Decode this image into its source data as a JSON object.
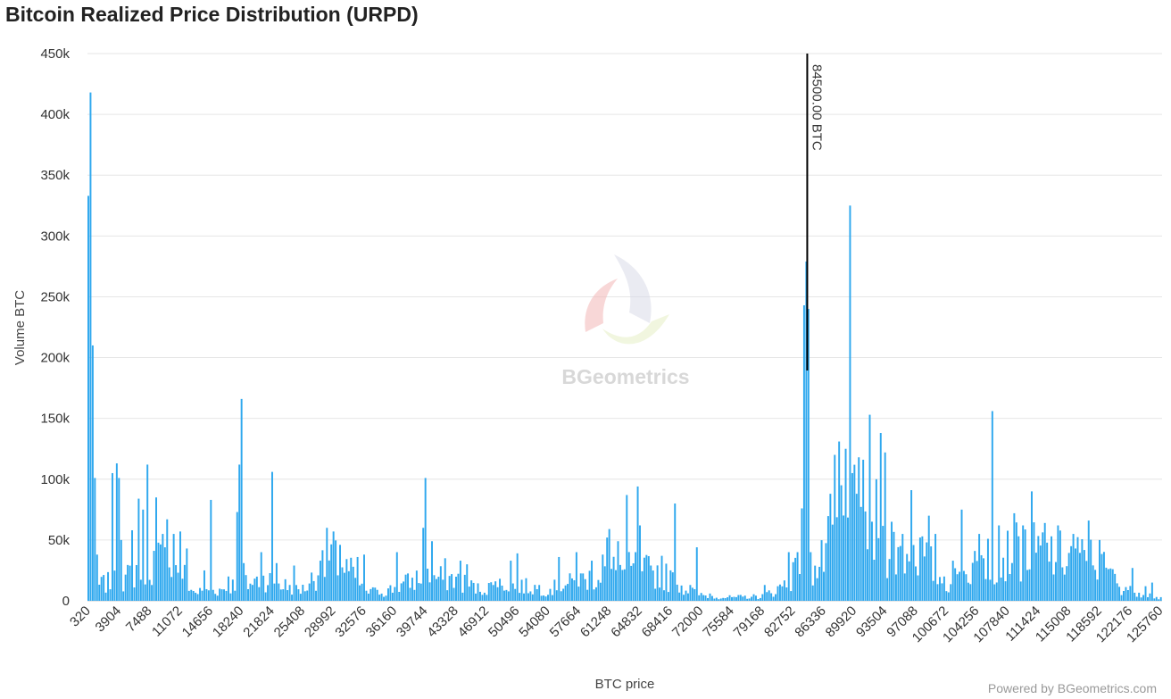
{
  "page": {
    "title": "Bitcoin Realized Price Distribution (URPD)",
    "credit": "Powered by BGeometrics.com",
    "watermark": "BGeometrics"
  },
  "colors": {
    "bar": "#2fa8ee",
    "grid": "#e6e6e6",
    "marker": "#000000",
    "logo": [
      "#d9dbe8",
      "#f3b7b7",
      "#e6f0c6"
    ]
  },
  "chart_data": {
    "type": "bar",
    "xlabel": "BTC price",
    "ylabel": "Volume BTC",
    "ylim": [
      0,
      450000
    ],
    "y_ticks": [
      {
        "value": 0,
        "label": "0"
      },
      {
        "value": 50000,
        "label": "50k"
      },
      {
        "value": 100000,
        "label": "100k"
      },
      {
        "value": 150000,
        "label": "150k"
      },
      {
        "value": 200000,
        "label": "200k"
      },
      {
        "value": 250000,
        "label": "250k"
      },
      {
        "value": 300000,
        "label": "300k"
      },
      {
        "value": 350000,
        "label": "350k"
      },
      {
        "value": 400000,
        "label": "400k"
      },
      {
        "value": 450000,
        "label": "450k"
      }
    ],
    "x_range": [
      320,
      126000
    ],
    "x_ticks": [
      "320",
      "3904",
      "7488",
      "11072",
      "14656",
      "18240",
      "21824",
      "25408",
      "28992",
      "32576",
      "36160",
      "39744",
      "43328",
      "46912",
      "50496",
      "54080",
      "57664",
      "61248",
      "64832",
      "68416",
      "72000",
      "75584",
      "79168",
      "82752",
      "86336",
      "89920",
      "93504",
      "97088",
      "100672",
      "104256",
      "107840",
      "111424",
      "115008",
      "118592",
      "122176",
      "125760"
    ],
    "bin_width": 256,
    "annotations": [
      {
        "x": 84500,
        "text": "84500.00 BTC"
      }
    ],
    "grid": true,
    "legend": "none",
    "peaks": [
      {
        "x": 320,
        "y": 333000
      },
      {
        "x": 576,
        "y": 418000
      },
      {
        "x": 832,
        "y": 210000
      },
      {
        "x": 1100,
        "y": 101000
      },
      {
        "x": 1350,
        "y": 38000
      },
      {
        "x": 3100,
        "y": 105000
      },
      {
        "x": 3600,
        "y": 113000
      },
      {
        "x": 3850,
        "y": 101000
      },
      {
        "x": 4100,
        "y": 50000
      },
      {
        "x": 5400,
        "y": 58000
      },
      {
        "x": 6300,
        "y": 84000
      },
      {
        "x": 6800,
        "y": 75000
      },
      {
        "x": 7300,
        "y": 112000
      },
      {
        "x": 8300,
        "y": 85000
      },
      {
        "x": 9000,
        "y": 55000
      },
      {
        "x": 9600,
        "y": 67000
      },
      {
        "x": 10200,
        "y": 55000
      },
      {
        "x": 11000,
        "y": 57000
      },
      {
        "x": 11900,
        "y": 43000
      },
      {
        "x": 13800,
        "y": 25000
      },
      {
        "x": 14600,
        "y": 83000
      },
      {
        "x": 16700,
        "y": 20000
      },
      {
        "x": 17600,
        "y": 73000
      },
      {
        "x": 17900,
        "y": 112000
      },
      {
        "x": 18200,
        "y": 166000
      },
      {
        "x": 18500,
        "y": 31000
      },
      {
        "x": 20500,
        "y": 40000
      },
      {
        "x": 21800,
        "y": 106000
      },
      {
        "x": 22400,
        "y": 31000
      },
      {
        "x": 24400,
        "y": 29000
      },
      {
        "x": 27500,
        "y": 33000
      },
      {
        "x": 28300,
        "y": 60000
      },
      {
        "x": 29000,
        "y": 57000
      },
      {
        "x": 29700,
        "y": 46000
      },
      {
        "x": 31700,
        "y": 36000
      },
      {
        "x": 32600,
        "y": 38000
      },
      {
        "x": 34000,
        "y": 9000
      },
      {
        "x": 36300,
        "y": 40000
      },
      {
        "x": 38200,
        "y": 19000
      },
      {
        "x": 39400,
        "y": 60000
      },
      {
        "x": 39700,
        "y": 101000
      },
      {
        "x": 40500,
        "y": 49000
      },
      {
        "x": 42000,
        "y": 35000
      },
      {
        "x": 43800,
        "y": 33000
      },
      {
        "x": 44600,
        "y": 30000
      },
      {
        "x": 48000,
        "y": 16000
      },
      {
        "x": 49600,
        "y": 33000
      },
      {
        "x": 50500,
        "y": 39000
      },
      {
        "x": 53000,
        "y": 13000
      },
      {
        "x": 55300,
        "y": 36000
      },
      {
        "x": 57300,
        "y": 40000
      },
      {
        "x": 59300,
        "y": 33000
      },
      {
        "x": 60600,
        "y": 38000
      },
      {
        "x": 61000,
        "y": 52000
      },
      {
        "x": 61250,
        "y": 59000
      },
      {
        "x": 62300,
        "y": 49000
      },
      {
        "x": 63200,
        "y": 87000
      },
      {
        "x": 64300,
        "y": 40000
      },
      {
        "x": 64600,
        "y": 94000
      },
      {
        "x": 64900,
        "y": 62000
      },
      {
        "x": 66100,
        "y": 29000
      },
      {
        "x": 67300,
        "y": 37000
      },
      {
        "x": 68800,
        "y": 80000
      },
      {
        "x": 70600,
        "y": 13000
      },
      {
        "x": 71400,
        "y": 44000
      },
      {
        "x": 73000,
        "y": 6000
      },
      {
        "x": 76000,
        "y": 3000
      },
      {
        "x": 79300,
        "y": 13000
      },
      {
        "x": 81000,
        "y": 12000
      },
      {
        "x": 82300,
        "y": 40000
      },
      {
        "x": 83200,
        "y": 40000
      },
      {
        "x": 83800,
        "y": 76000
      },
      {
        "x": 84100,
        "y": 243000
      },
      {
        "x": 84400,
        "y": 279000
      },
      {
        "x": 84650,
        "y": 240000
      },
      {
        "x": 84900,
        "y": 40000
      },
      {
        "x": 87000,
        "y": 88000
      },
      {
        "x": 87500,
        "y": 120000
      },
      {
        "x": 88000,
        "y": 131000
      },
      {
        "x": 88500,
        "y": 95000
      },
      {
        "x": 88900,
        "y": 125000
      },
      {
        "x": 89400,
        "y": 325000
      },
      {
        "x": 89700,
        "y": 105000
      },
      {
        "x": 90100,
        "y": 88000
      },
      {
        "x": 90500,
        "y": 118000
      },
      {
        "x": 90900,
        "y": 116000
      },
      {
        "x": 91800,
        "y": 153000
      },
      {
        "x": 92400,
        "y": 100000
      },
      {
        "x": 93000,
        "y": 138000
      },
      {
        "x": 93500,
        "y": 122000
      },
      {
        "x": 94200,
        "y": 65000
      },
      {
        "x": 95600,
        "y": 55000
      },
      {
        "x": 96500,
        "y": 91000
      },
      {
        "x": 97500,
        "y": 52000
      },
      {
        "x": 98600,
        "y": 70000
      },
      {
        "x": 99400,
        "y": 55000
      },
      {
        "x": 100300,
        "y": 20000
      },
      {
        "x": 101400,
        "y": 33000
      },
      {
        "x": 102500,
        "y": 75000
      },
      {
        "x": 104000,
        "y": 41000
      },
      {
        "x": 104600,
        "y": 55000
      },
      {
        "x": 105600,
        "y": 51000
      },
      {
        "x": 106100,
        "y": 156000
      },
      {
        "x": 106700,
        "y": 62000
      },
      {
        "x": 108500,
        "y": 72000
      },
      {
        "x": 109600,
        "y": 62000
      },
      {
        "x": 110700,
        "y": 90000
      },
      {
        "x": 112300,
        "y": 64000
      },
      {
        "x": 113600,
        "y": 62000
      },
      {
        "x": 115500,
        "y": 55000
      },
      {
        "x": 117300,
        "y": 66000
      },
      {
        "x": 118600,
        "y": 50000
      },
      {
        "x": 120000,
        "y": 26000
      },
      {
        "x": 122500,
        "y": 27000
      },
      {
        "x": 124000,
        "y": 12000
      },
      {
        "x": 124700,
        "y": 15000
      },
      {
        "x": 125700,
        "y": 3000
      }
    ],
    "base_levels": [
      {
        "x": 320,
        "y": 10000
      },
      {
        "x": 2000,
        "y": 15000
      },
      {
        "x": 4500,
        "y": 18000
      },
      {
        "x": 6000,
        "y": 28000
      },
      {
        "x": 8000,
        "y": 35000
      },
      {
        "x": 10500,
        "y": 38000
      },
      {
        "x": 12500,
        "y": 8000
      },
      {
        "x": 14000,
        "y": 8000
      },
      {
        "x": 16000,
        "y": 10000
      },
      {
        "x": 17000,
        "y": 14000
      },
      {
        "x": 19000,
        "y": 15000
      },
      {
        "x": 21000,
        "y": 20000
      },
      {
        "x": 23000,
        "y": 14000
      },
      {
        "x": 25500,
        "y": 10000
      },
      {
        "x": 27000,
        "y": 24000
      },
      {
        "x": 29000,
        "y": 35000
      },
      {
        "x": 31000,
        "y": 25000
      },
      {
        "x": 33000,
        "y": 8000
      },
      {
        "x": 35000,
        "y": 8000
      },
      {
        "x": 37000,
        "y": 14000
      },
      {
        "x": 39000,
        "y": 20000
      },
      {
        "x": 41000,
        "y": 20000
      },
      {
        "x": 43000,
        "y": 20000
      },
      {
        "x": 46000,
        "y": 10000
      },
      {
        "x": 49000,
        "y": 15000
      },
      {
        "x": 52000,
        "y": 12000
      },
      {
        "x": 54000,
        "y": 10000
      },
      {
        "x": 56000,
        "y": 14000
      },
      {
        "x": 58000,
        "y": 18000
      },
      {
        "x": 61000,
        "y": 27000
      },
      {
        "x": 64000,
        "y": 27000
      },
      {
        "x": 67000,
        "y": 25000
      },
      {
        "x": 70000,
        "y": 12000
      },
      {
        "x": 72000,
        "y": 5000
      },
      {
        "x": 75000,
        "y": 3000
      },
      {
        "x": 79000,
        "y": 4000
      },
      {
        "x": 81000,
        "y": 10000
      },
      {
        "x": 82500,
        "y": 22000
      },
      {
        "x": 84000,
        "y": 30000
      },
      {
        "x": 85500,
        "y": 25000
      },
      {
        "x": 86500,
        "y": 40000
      },
      {
        "x": 88000,
        "y": 70000
      },
      {
        "x": 90000,
        "y": 75000
      },
      {
        "x": 92000,
        "y": 60000
      },
      {
        "x": 94000,
        "y": 45000
      },
      {
        "x": 96000,
        "y": 42000
      },
      {
        "x": 98000,
        "y": 40000
      },
      {
        "x": 99500,
        "y": 25000
      },
      {
        "x": 101000,
        "y": 15000
      },
      {
        "x": 103000,
        "y": 25000
      },
      {
        "x": 105000,
        "y": 35000
      },
      {
        "x": 107000,
        "y": 40000
      },
      {
        "x": 110000,
        "y": 45000
      },
      {
        "x": 113000,
        "y": 42000
      },
      {
        "x": 116000,
        "y": 38000
      },
      {
        "x": 118500,
        "y": 35000
      },
      {
        "x": 120500,
        "y": 15000
      },
      {
        "x": 122500,
        "y": 10000
      },
      {
        "x": 124500,
        "y": 5000
      },
      {
        "x": 126000,
        "y": 1000
      }
    ]
  }
}
